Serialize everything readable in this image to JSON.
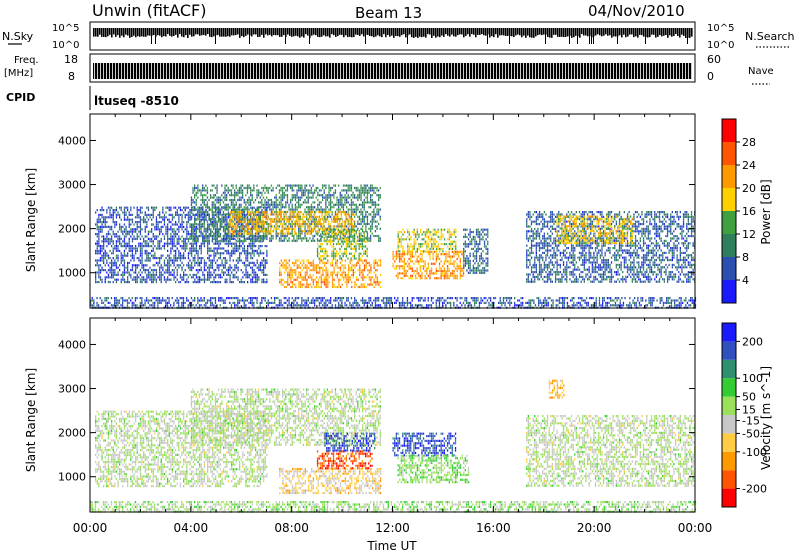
{
  "header": {
    "station": "Unwin (fitACF)",
    "beam": "Beam 13",
    "date": "04/Nov/2010"
  },
  "strip": {
    "nsky_label": "N.Sky",
    "nsearch_label": "N.Search",
    "noise_ticks": [
      "10^5",
      "10^0"
    ],
    "freq_label_1": "Freq.",
    "freq_label_2": "[MHz]",
    "freq_ticks": [
      "18",
      "8"
    ],
    "nave_label": "Nave",
    "nave_ticks": [
      "60",
      "0"
    ],
    "cpid_label": "CPID",
    "cpid_value": "ltuseq -8510"
  },
  "colors": {
    "power_scale": [
      "#1a1aff",
      "#2b4fb0",
      "#2f7f5c",
      "#40a040",
      "#ffd000",
      "#ff9900",
      "#ff5500",
      "#ff0000"
    ],
    "velocity_scale": [
      "#ff0000",
      "#ff5500",
      "#ff9900",
      "#ffcc44",
      "#c8c8c8",
      "#9be05a",
      "#33cc33",
      "#2f8f6f",
      "#3050c0",
      "#1a1aff"
    ]
  },
  "chart_data": [
    {
      "type": "heatmap",
      "name": "power",
      "xlabel": "Time UT",
      "ylabel": "Slant Range [km]",
      "xlim": [
        0,
        24
      ],
      "ylim": [
        200,
        4600
      ],
      "x_ticks": [
        "00:00",
        "04:00",
        "08:00",
        "12:00",
        "16:00",
        "20:00",
        "00:00"
      ],
      "y_ticks": [
        1000,
        2000,
        3000,
        4000
      ],
      "colorbar": {
        "label": "Power [dB]",
        "ticks": [
          4,
          8,
          12,
          16,
          20,
          24,
          28
        ],
        "range": [
          0,
          32
        ]
      },
      "regions": [
        {
          "t0": 0.2,
          "t1": 7.0,
          "r0": 800,
          "r1": 2500,
          "value": 6
        },
        {
          "t0": 4.0,
          "t1": 11.5,
          "r0": 1700,
          "r1": 3000,
          "value": 10
        },
        {
          "t0": 5.5,
          "t1": 10.5,
          "r0": 1900,
          "r1": 2400,
          "value": 20
        },
        {
          "t0": 7.5,
          "t1": 11.5,
          "r0": 650,
          "r1": 1300,
          "value": 22
        },
        {
          "t0": 9.0,
          "t1": 11.0,
          "r0": 1300,
          "r1": 2000,
          "value": 15
        },
        {
          "t0": 12.0,
          "t1": 14.8,
          "r0": 900,
          "r1": 1500,
          "value": 22
        },
        {
          "t0": 12.2,
          "t1": 14.5,
          "r0": 1500,
          "r1": 2000,
          "value": 17
        },
        {
          "t0": 14.8,
          "t1": 15.8,
          "r0": 1000,
          "r1": 2000,
          "value": 8
        },
        {
          "t0": 17.3,
          "t1": 24.0,
          "r0": 800,
          "r1": 2400,
          "value": 7
        },
        {
          "t0": 18.5,
          "t1": 21.5,
          "r0": 1700,
          "r1": 2300,
          "value": 18
        },
        {
          "t0": 0.0,
          "t1": 24.0,
          "r0": 200,
          "r1": 450,
          "value": 6
        }
      ]
    },
    {
      "type": "heatmap",
      "name": "velocity",
      "xlabel": "Time UT",
      "ylabel": "Slant Range [km]",
      "xlim": [
        0,
        24
      ],
      "ylim": [
        200,
        4600
      ],
      "x_ticks": [
        "00:00",
        "04:00",
        "08:00",
        "12:00",
        "16:00",
        "20:00",
        "00:00"
      ],
      "y_ticks": [
        1000,
        2000,
        3000,
        4000
      ],
      "colorbar": {
        "label": "Velocity [m s^-1]",
        "ticks": [
          200,
          100,
          50,
          15,
          -15,
          -50,
          -100,
          -200
        ],
        "range": [
          -250,
          250
        ]
      },
      "regions": [
        {
          "t0": 0.2,
          "t1": 7.0,
          "r0": 800,
          "r1": 2500,
          "value": 0
        },
        {
          "t0": 4.0,
          "t1": 11.5,
          "r0": 1700,
          "r1": 3000,
          "value": 0
        },
        {
          "t0": 7.5,
          "t1": 11.5,
          "r0": 650,
          "r1": 1200,
          "value": -60
        },
        {
          "t0": 9.0,
          "t1": 11.2,
          "r0": 1200,
          "r1": 1600,
          "value": -180
        },
        {
          "t0": 9.3,
          "t1": 11.3,
          "r0": 1600,
          "r1": 2000,
          "value": 180
        },
        {
          "t0": 12.0,
          "t1": 14.5,
          "r0": 1500,
          "r1": 2000,
          "value": 180
        },
        {
          "t0": 12.2,
          "t1": 15.0,
          "r0": 900,
          "r1": 1500,
          "value": 40
        },
        {
          "t0": 17.3,
          "t1": 24.0,
          "r0": 800,
          "r1": 2400,
          "value": 0
        },
        {
          "t0": 18.2,
          "t1": 18.8,
          "r0": 2800,
          "r1": 3200,
          "value": -100
        },
        {
          "t0": 0.0,
          "t1": 24.0,
          "r0": 200,
          "r1": 450,
          "value": 20
        }
      ]
    }
  ]
}
